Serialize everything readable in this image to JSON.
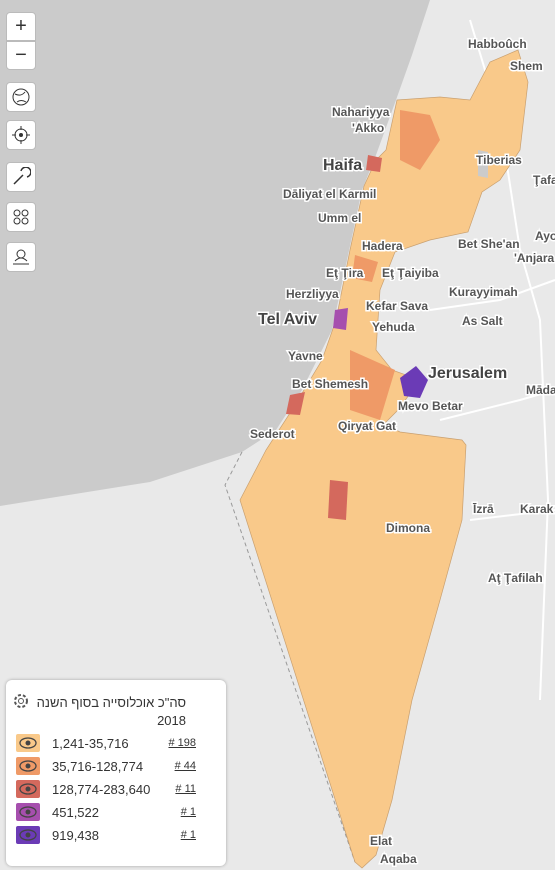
{
  "controls": {
    "zoom_in": "+",
    "zoom_out": "−"
  },
  "places": [
    {
      "name": "Habboûch"
    },
    {
      "name": "Shem"
    },
    {
      "name": "Nahariyya"
    },
    {
      "name": "'Akko"
    },
    {
      "name": "Haifa"
    },
    {
      "name": "Tiberias"
    },
    {
      "name": "Ţafa"
    },
    {
      "name": "Dāliyat el Karmil"
    },
    {
      "name": "Umm el"
    },
    {
      "name": "Hadera"
    },
    {
      "name": "Bet She'an"
    },
    {
      "name": "Ayo"
    },
    {
      "name": "'Anjara"
    },
    {
      "name": "Eţ Ţira"
    },
    {
      "name": "Eţ Ţaiyiba"
    },
    {
      "name": "Herzliyya"
    },
    {
      "name": "Kefar Sava"
    },
    {
      "name": "Kurayyimah"
    },
    {
      "name": "Tel Aviv"
    },
    {
      "name": "Yehuda"
    },
    {
      "name": "As Salt"
    },
    {
      "name": "Yavne"
    },
    {
      "name": "Jerusalem"
    },
    {
      "name": "Māda"
    },
    {
      "name": "Bet Shemesh"
    },
    {
      "name": "Mevo Betar"
    },
    {
      "name": "Sederot"
    },
    {
      "name": "Qiryat Gat"
    },
    {
      "name": "Dimona"
    },
    {
      "name": "Īzrā"
    },
    {
      "name": "Karak"
    },
    {
      "name": "Aţ Ţafilah"
    },
    {
      "name": "Elat"
    },
    {
      "name": "Aqaba"
    }
  ],
  "legend": {
    "title": "סה\"כ אוכלוסייה בסוף השנה 2018",
    "items": [
      {
        "range": "1,241-35,716",
        "count": "# 198",
        "color": "#f9c98a"
      },
      {
        "range": "35,716-128,774",
        "count": "# 44",
        "color": "#ef9a67"
      },
      {
        "range": "128,774-283,640",
        "count": "# 11",
        "color": "#d4695d"
      },
      {
        "range": "451,522",
        "count": "# 1",
        "color": "#a64fae"
      },
      {
        "range": "919,438",
        "count": "# 1",
        "color": "#6b3bb6"
      }
    ]
  }
}
